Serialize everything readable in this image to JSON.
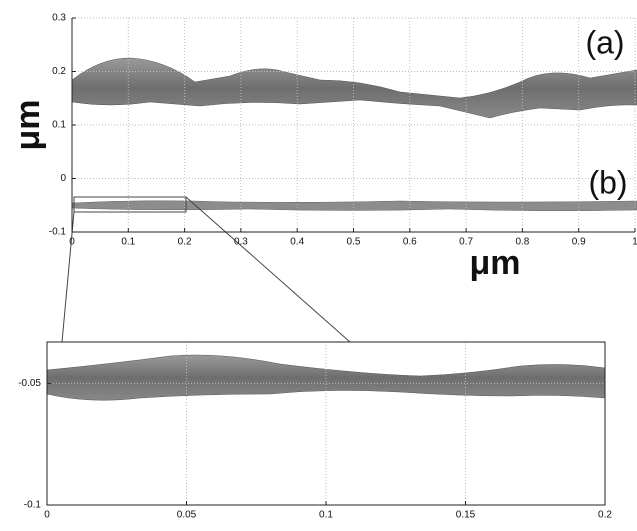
{
  "chart_data": [
    {
      "type": "surface",
      "xlabel": "μm",
      "ylabel": "μm",
      "annotations": [
        "(a)",
        "(b)"
      ],
      "xlim": [
        0,
        1
      ],
      "ylim": [
        -0.1,
        0.3
      ],
      "xticks": [
        0,
        0.1,
        0.2,
        0.3,
        0.4,
        0.5,
        0.6,
        0.7,
        0.8,
        0.9,
        1
      ],
      "yticks": [
        -0.1,
        0,
        0.1,
        0.2,
        0.3
      ],
      "grid": true
    },
    {
      "type": "surface",
      "xlim": [
        0,
        0.2
      ],
      "ylim": [
        -0.1,
        -0.033
      ],
      "xticks": [
        0,
        0.05,
        0.1,
        0.15,
        0.2
      ],
      "yticks": [
        -0.1,
        -0.05
      ],
      "grid": true
    }
  ]
}
